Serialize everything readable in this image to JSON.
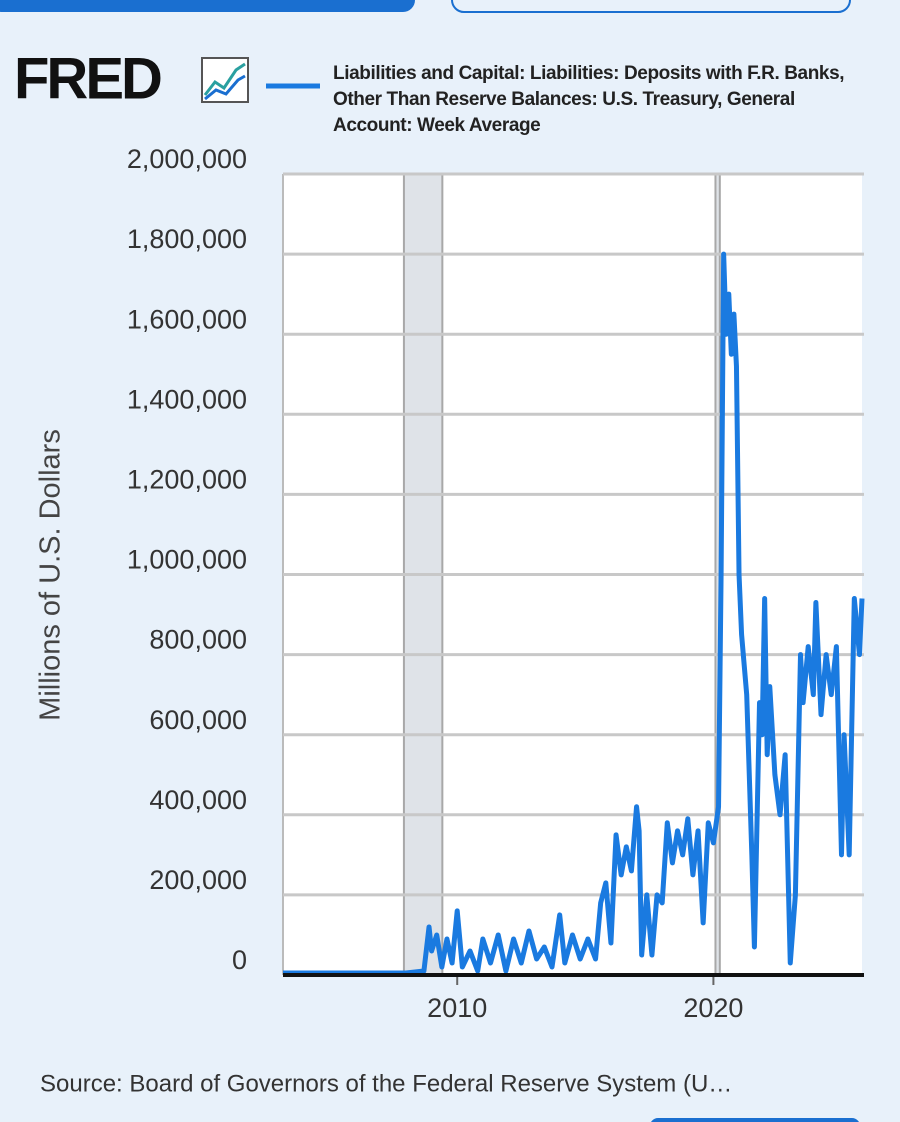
{
  "logo": "FRED",
  "chart_data": {
    "type": "line",
    "y_axis_label": "Millions of U.S. Dollars",
    "source": "Source: Board of Governors of the Federal Reserve System (U…",
    "series": [
      {
        "name": "Liabilities and Capital: Liabilities: Deposits with F.R. Banks, Other Than Reserve Balances: U.S. Treasury, General Account: Week Average",
        "color": "#1a7ae0",
        "x": [
          2003.2,
          2004,
          2005,
          2006,
          2007,
          2008,
          2008.7,
          2008.9,
          2009.0,
          2009.2,
          2009.4,
          2009.6,
          2009.8,
          2010.0,
          2010.2,
          2010.5,
          2010.8,
          2011.0,
          2011.3,
          2011.6,
          2011.9,
          2012.2,
          2012.5,
          2012.8,
          2013.1,
          2013.4,
          2013.7,
          2014.0,
          2014.2,
          2014.5,
          2014.8,
          2015.1,
          2015.4,
          2015.6,
          2015.8,
          2016.0,
          2016.2,
          2016.4,
          2016.6,
          2016.8,
          2017.0,
          2017.1,
          2017.2,
          2017.4,
          2017.6,
          2017.8,
          2018.0,
          2018.2,
          2018.4,
          2018.6,
          2018.8,
          2019.0,
          2019.2,
          2019.4,
          2019.6,
          2019.8,
          2020.0,
          2020.2,
          2020.3,
          2020.4,
          2020.5,
          2020.6,
          2020.7,
          2020.8,
          2020.9,
          2021.0,
          2021.1,
          2021.3,
          2021.5,
          2021.6,
          2021.8,
          2021.9,
          2022.0,
          2022.1,
          2022.2,
          2022.4,
          2022.6,
          2022.8,
          2023.0,
          2023.2,
          2023.4,
          2023.5,
          2023.7,
          2023.9,
          2024.0,
          2024.2,
          2024.4,
          2024.6,
          2024.8,
          2025.0,
          2025.1,
          2025.3,
          2025.5,
          2025.7,
          2025.8
        ],
        "values": [
          5000,
          5000,
          5000,
          5000,
          5000,
          5000,
          10000,
          120000,
          60000,
          100000,
          20000,
          90000,
          30000,
          160000,
          20000,
          60000,
          10000,
          90000,
          30000,
          100000,
          10000,
          90000,
          30000,
          110000,
          40000,
          70000,
          20000,
          150000,
          30000,
          100000,
          40000,
          90000,
          40000,
          180000,
          230000,
          80000,
          350000,
          250000,
          320000,
          260000,
          420000,
          360000,
          50000,
          200000,
          50000,
          200000,
          180000,
          380000,
          280000,
          360000,
          300000,
          390000,
          250000,
          360000,
          130000,
          380000,
          330000,
          420000,
          1000000,
          1800000,
          1600000,
          1700000,
          1550000,
          1650000,
          1520000,
          1000000,
          850000,
          700000,
          300000,
          70000,
          680000,
          600000,
          940000,
          550000,
          720000,
          500000,
          400000,
          550000,
          30000,
          200000,
          800000,
          680000,
          820000,
          700000,
          930000,
          650000,
          800000,
          700000,
          820000,
          300000,
          600000,
          300000,
          940000,
          800000,
          940000
        ]
      }
    ],
    "recessions": [
      [
        2007.92,
        2009.42
      ],
      [
        2020.08,
        2020.25
      ]
    ],
    "xlim": [
      2003.2,
      2025.8
    ],
    "xticks": [
      2010,
      2020
    ],
    "ylim": [
      0,
      2000000
    ],
    "yticks": [
      0,
      {
        "value": 200000,
        "label": "200,000"
      },
      {
        "value": 400000,
        "label": "400,000"
      },
      {
        "value": 600000,
        "label": "600,000"
      },
      {
        "value": 800000,
        "label": "800,000"
      },
      {
        "value": 1000000,
        "label": "1,000,000"
      },
      {
        "value": 1200000,
        "label": "1,200,000"
      },
      {
        "value": 1400000,
        "label": "1,400,000"
      },
      {
        "value": 1600000,
        "label": "1,600,000"
      },
      {
        "value": 1800000,
        "label": "1,800,000"
      },
      {
        "value": 2000000,
        "label": "2,000,000"
      }
    ],
    "grid": true
  }
}
